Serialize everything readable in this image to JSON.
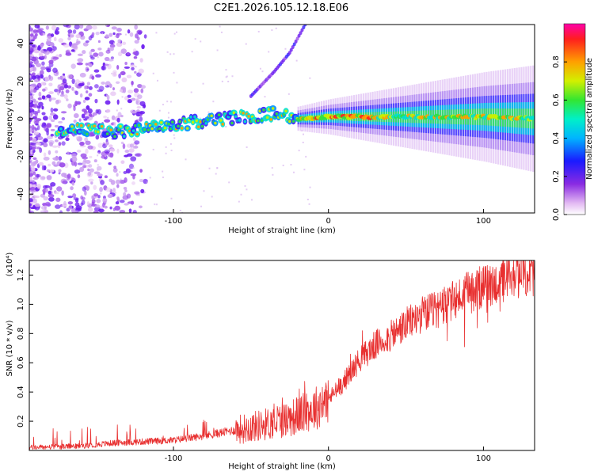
{
  "title": "C2E1.2026.105.12.18.E06",
  "chart_data": [
    {
      "type": "heatmap",
      "name": "spectrogram",
      "xlabel": "Height of straight line (km)",
      "ylabel": "Frequency (Hz)",
      "xlim": [
        -193,
        133
      ],
      "ylim": [
        -50,
        50
      ],
      "xticks": [
        -100,
        0,
        100
      ],
      "yticks": [
        -40,
        -20,
        0,
        20,
        40
      ],
      "colorbar": {
        "label": "Normalized spectral amplitude",
        "range": [
          0.0,
          1.0
        ],
        "ticks": [
          "0.0",
          "0.2",
          "0.4",
          "0.6",
          "0.8"
        ],
        "tick_values": [
          0.0,
          0.2,
          0.4,
          0.6,
          0.8
        ]
      },
      "ridge": {
        "description_points_km_hz": [
          [
            -170,
            -6
          ],
          [
            -130,
            -7
          ],
          [
            -105,
            -4
          ],
          [
            -80,
            -1
          ],
          [
            -55,
            1
          ],
          [
            -30,
            3
          ],
          [
            -20,
            0
          ],
          [
            0,
            1
          ],
          [
            20,
            1
          ],
          [
            60,
            1
          ],
          [
            100,
            1
          ],
          [
            133,
            0
          ]
        ],
        "upper_branch_points_km_hz": [
          [
            -50,
            12
          ],
          [
            -35,
            25
          ],
          [
            -25,
            35
          ],
          [
            -15,
            50
          ]
        ]
      }
    },
    {
      "type": "line",
      "name": "snr",
      "xlabel": "Height of straight line (km)",
      "ylabel": "SNR (10 * v/v)",
      "ylabel_multiplier": "(x10⁴)",
      "xlim": [
        -193,
        133
      ],
      "ylim": [
        0,
        1.3
      ],
      "xticks": [
        -100,
        0,
        100
      ],
      "yticks": [
        "0.2",
        "0.4",
        "0.6",
        "0.8",
        "1.0",
        "1.2"
      ],
      "ytick_values": [
        0.2,
        0.4,
        0.6,
        0.8,
        1.0,
        1.2
      ],
      "color": "#e83030",
      "trend_x": [
        -193,
        -160,
        -140,
        -120,
        -100,
        -80,
        -60,
        -40,
        -25,
        -10,
        0,
        10,
        20,
        30,
        40,
        50,
        60,
        70,
        80,
        90,
        100,
        110,
        120,
        133
      ],
      "trend_y": [
        0.02,
        0.03,
        0.05,
        0.06,
        0.07,
        0.1,
        0.14,
        0.18,
        0.22,
        0.28,
        0.35,
        0.47,
        0.62,
        0.72,
        0.78,
        0.86,
        0.93,
        0.96,
        1.02,
        1.08,
        1.12,
        1.15,
        1.19,
        1.21
      ]
    }
  ]
}
